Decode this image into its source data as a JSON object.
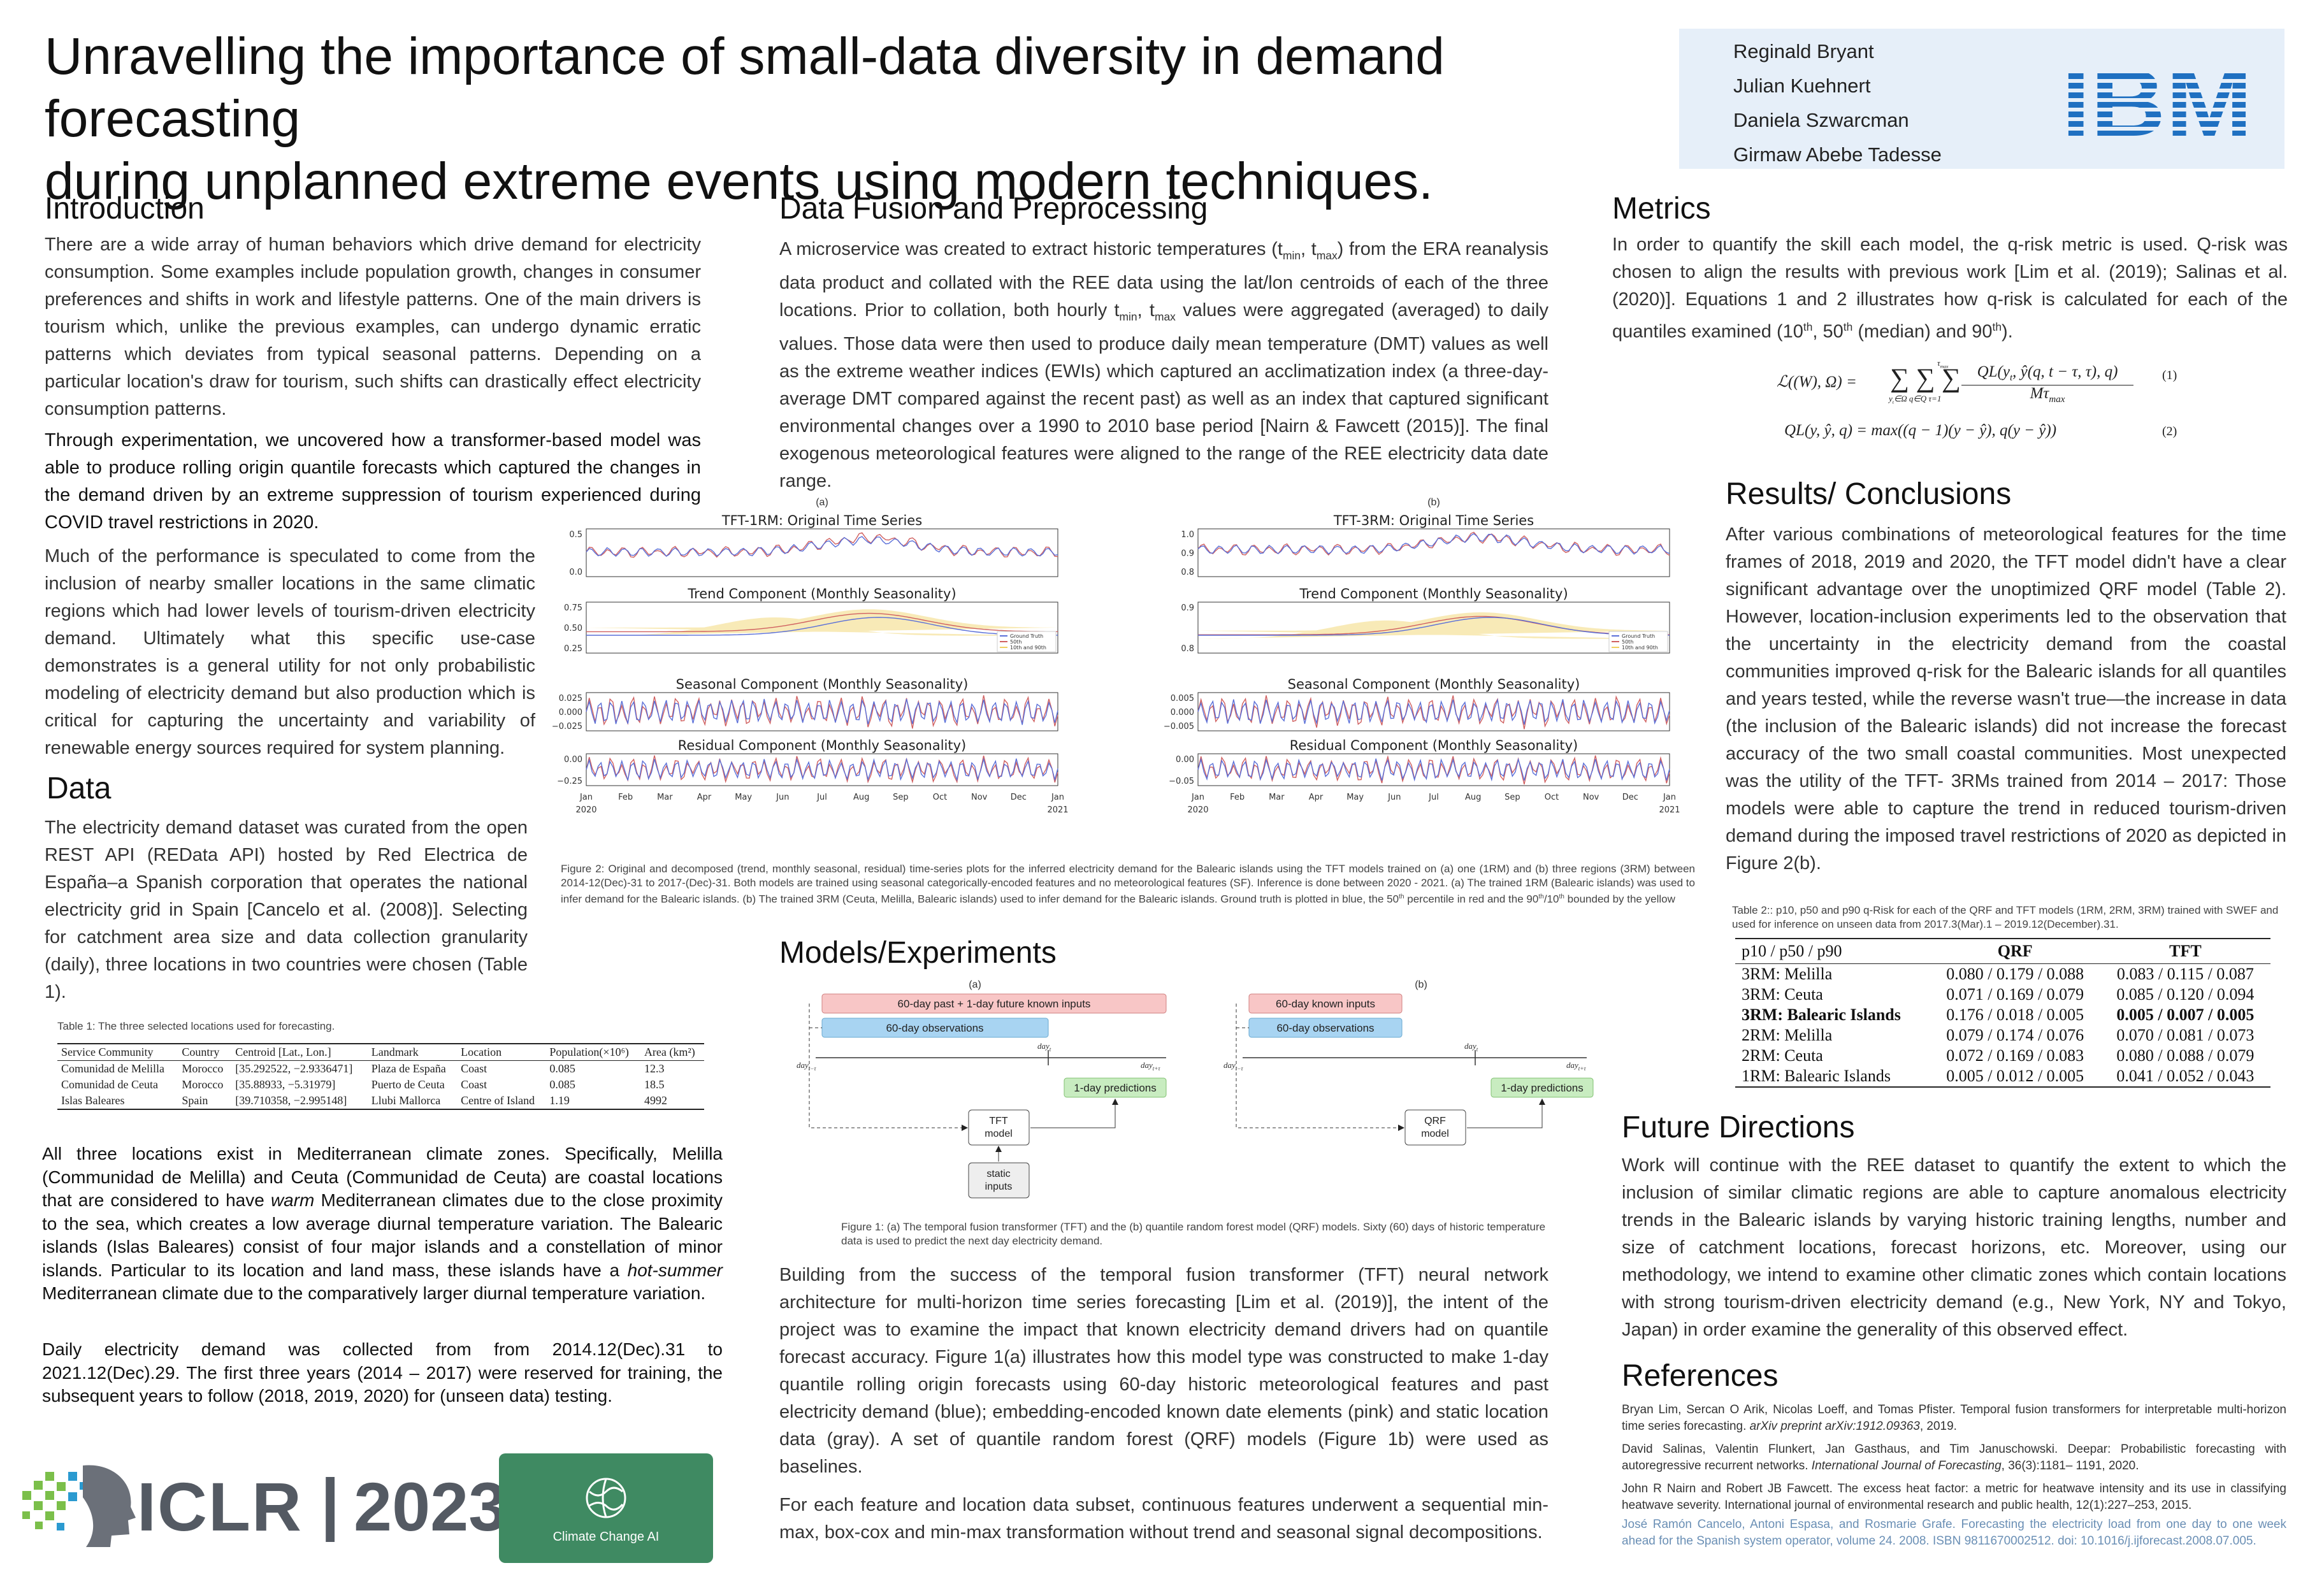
{
  "title": {
    "line1": "Unravelling the importance of small-data diversity in demand forecasting",
    "line2": "during unplanned extreme events using modern techniques."
  },
  "authors": [
    "Reginald Bryant",
    "Julian Kuehnert",
    "Daniela Szwarcman",
    "Girmaw Abebe Tadesse"
  ],
  "logos": {
    "ibm": "IBM",
    "iclr_text": "ICLR",
    "iclr_sep": "|",
    "iclr_year": "2023",
    "cca": "Climate Change AI"
  },
  "colors": {
    "ibm_blue": "#1f70c1",
    "pink": "#f8c6c6",
    "blue_box": "#a8d4f2",
    "green_box": "#c8ecc0",
    "gray_box": "#eeeeee",
    "cca_green": "#3f8a62",
    "series_blue": "#5a6fd8",
    "series_red": "#d06060",
    "series_yellow": "#f0d060"
  },
  "intro": {
    "heading": "Introduction",
    "p1": "There are a wide array of human behaviors which drive demand for electricity consumption. Some examples include population growth, changes in consumer preferences and shifts in work and lifestyle patterns. One of the main drivers is tourism which, unlike the previous examples, can undergo dynamic erratic patterns which deviates from typical seasonal patterns. Depending on a particular location's draw for tourism, such shifts can drastically effect electricity consumption patterns.",
    "p2": "Through experimentation, we uncovered how a transformer-based model was able to produce rolling origin quantile forecasts which captured the changes in the demand driven by an extreme suppression of tourism experienced during COVID travel restrictions in 2020.",
    "p3": "Much of the performance is speculated to come from the inclusion of nearby smaller locations in the same climatic regions which had lower levels of tourism-driven electricity demand. Ultimately what this specific use-case demonstrates is a general utility for not only probabilistic modeling of electricity demand but also production which is critical for capturing the uncertainty and variability of renewable energy sources required for system planning."
  },
  "data_section": {
    "heading": "Data",
    "p1": "The electricity demand  dataset was curated from the open REST API (REData API) hosted by Red Electrica de España–a Spanish corporation that operates the national electricity grid in Spain [Cancelo et al. (2008)]. Selecting for catchment area size and data collection granularity (daily), three locations in two countries were chosen (Table 1).",
    "table_caption": "Table 1: The three selected locations used for forecasting.",
    "table_headers": [
      "Service Community",
      "Country",
      "Centroid [Lat., Lon.]",
      "Landmark",
      "Location",
      "Population(×10⁶)",
      "Area (km²)"
    ],
    "table_rows": [
      [
        "Comunidad de Melilla",
        "Morocco",
        "[35.292522, −2.9336471]",
        "Plaza de España",
        "Coast",
        "0.085",
        "12.3"
      ],
      [
        "Comunidad de Ceuta",
        "Morocco",
        "[35.88933, −5.31979]",
        "Puerto de Ceuta",
        "Coast",
        "0.085",
        "18.5"
      ],
      [
        "Islas Baleares",
        "Spain",
        "[39.710358, −2.995148]",
        "Llubi Mallorca",
        "Centre of Island",
        "1.19",
        "4992"
      ]
    ],
    "p2a": "All three locations exist in Mediterranean climate zones. Specifically, Melilla (Communidad de Melilla) and Ceuta (Communidad de Ceuta) are coastal locations that are considered to have ",
    "p2b": "warm",
    "p2c": " Mediterranean climates due to the close proximity to the sea, which creates a low average diurnal temperature variation. The Balearic islands (Islas Baleares) consist of four major islands and a constellation of minor islands. Particular to its location and land mass, these islands have a ",
    "p2d": "hot-summer",
    "p2e": " Mediterranean climate due to the comparatively larger diurnal temperature variation.",
    "p3": "Daily electricity demand was collected from from 2014.12(Dec).31 to 2021.12(Dec).29. The first three years (2014 – 2017) were reserved for training, the subsequent years to follow (2018, 2019, 2020) for (unseen data) testing."
  },
  "fusion": {
    "heading": "Data Fusion and Preprocessing",
    "p1a": "A microservice was created to extract historic temperatures (t",
    "tmin_sub": "min",
    "p1b": ", t",
    "tmax_sub": "max",
    "p1c": ") from the ERA reanalysis data product and collated with the REE data using the lat/lon centroids of each of the three locations. Prior to collation, both hourly t",
    "p1d": ", t",
    "p1e": " values were aggregated (averaged) to daily values. Those data were then used to produce daily mean temperature (DMT) values as well as the extreme weather indices (EWIs) which captured an acclimatization index (a three-day-average DMT compared against the recent past) as well as an index that captured significant environmental changes over a 1990 to 2010 base period [Nairn & Fawcett (2015)]. The final exogenous meteorological features were aligned to the range of the REE electricity data date range."
  },
  "figure2": {
    "panel_a": "(a)",
    "panel_b": "(b)",
    "a_titles": [
      "TFT-1RM: Original Time Series",
      "Trend Component (Monthly Seasonality)",
      "Seasonal Component (Monthly Seasonality)",
      "Residual Component (Monthly Seasonality)"
    ],
    "b_titles": [
      "TFT-3RM: Original Time Series",
      "Trend Component (Monthly Seasonality)",
      "Seasonal Component (Monthly Seasonality)",
      "Residual Component (Monthly Seasonality)"
    ],
    "a_yticks": [
      [
        "0.5",
        "0.0"
      ],
      [
        "0.75",
        "0.50",
        "0.25"
      ],
      [
        "0.025",
        "0.000",
        "−0.025"
      ],
      [
        "0.00",
        "−0.25"
      ]
    ],
    "b_yticks": [
      [
        "1.0",
        "0.9",
        "0.8"
      ],
      [
        "0.9",
        "0.8"
      ],
      [
        "0.005",
        "0.000",
        "−0.005"
      ],
      [
        "0.00",
        "−0.05"
      ]
    ],
    "months": [
      "Jan",
      "Feb",
      "Mar",
      "Apr",
      "May",
      "Jun",
      "Jul",
      "Aug",
      "Sep",
      "Oct",
      "Nov",
      "Dec",
      "Jan"
    ],
    "year_start": "2020",
    "year_end": "2021",
    "legend": [
      "Ground Truth",
      "50th",
      "10th and 90th"
    ],
    "caption_a": "Figure 2: Original and decomposed (trend, monthly seasonal, residual) time-series plots for the inferred electricity demand for the Balearic islands using the TFT models trained on (a) one (1RM) and (b) three regions (3RM) between 2014-12(Dec)-31 to 2017-(Dec)-31. Both models are trained using seasonal categorically-encoded features and no meteorological features (SF). Inference is done between 2020 - 2021. (a) The trained 1RM (Balearic islands) was used to infer demand for the Balearic islands. (b) The trained 3RM (Ceuta, Melilla, Balearic islands) used to infer demand for the Balearic islands. Ground truth is plotted in blue, the 50",
    "caption_th": "th",
    "caption_b": " percentile in red and the 90",
    "caption_c": "/10",
    "caption_d": " bounded by the yellow"
  },
  "models": {
    "heading": "Models/Experiments",
    "panel_a": "(a)",
    "panel_b": "(b)",
    "a_pink": "60-day past + 1-day future known inputs",
    "a_blue": "60-day observations",
    "b_pink": "60-day known inputs",
    "b_blue": "60-day observations",
    "day_start": "day",
    "day_start_sub": "t−τ",
    "day_mid": "day",
    "day_mid_sub": "t",
    "day_end": "day",
    "day_end_sub": "t+τ",
    "pred": "1-day predictions",
    "tft_model": "TFT\nmodel",
    "qrf_model": "QRF\nmodel",
    "static_inputs": "static\ninputs",
    "caption": "Figure 1: (a) The temporal fusion transformer (TFT) and the (b) quantile random forest model (QRF) models. Sixty (60) days of historic temperature data is used to predict the next day electricity demand.",
    "p1": "Building from the success of the temporal fusion transformer (TFT) neural network architecture for multi-horizon time series forecasting [Lim et al. (2019)], the intent of the project was to examine the impact that known electricity demand drivers had on quantile forecast accuracy. Figure 1(a) illustrates how this model type was constructed to make 1-day quantile rolling origin forecasts using 60-day historic meteorological features and past electricity demand (blue); embedding-encoded known date elements (pink) and static location data (gray). A set of quantile random forest (QRF)  models (Figure 1b) were used as baselines.",
    "p2": "For each feature and location data subset, continuous features underwent a sequential min-max, box-cox and min-max transformation without trend and seasonal signal decompositions."
  },
  "metrics": {
    "heading": "Metrics",
    "p1a": "In order to quantify the skill each model, the q-risk metric is used. Q-risk was chosen to align the results with previous work [Lim et al. (2019); Salinas et al. (2020)]. Equations 1 and 2 illustrates how q-risk is calculated for each of the quantiles examined (10",
    "p1b": ", 50",
    "p1c": " (median) and 90",
    "p1d": ").",
    "th": "th",
    "eq1_lhs": "ℒ((W), Ω) = ",
    "eq1_sum": "∑ ∑ ∑",
    "eq1_sub": "y",
    "eq1_sub2": "t",
    "eq1_sub3": "∈Ω q∈Q τ=1",
    "eq1_top": "τ",
    "eq1_top2": "max",
    "eq1_num": "QL(y",
    "eq1_num2": "t",
    "eq1_num3": ", ŷ(q, t − τ, τ), q)",
    "eq1_den": "Mτ",
    "eq1_den2": "max",
    "eq1_no": "(1)",
    "eq2": "QL(y, ŷ, q) = max((q − 1)(y − ŷ), q(y − ŷ))",
    "eq2_no": "(2)"
  },
  "results": {
    "heading": "Results/ Conclusions",
    "p1": "After various combinations of meteorological features for the time frames of 2018, 2019 and 2020, the TFT model didn't have a clear significant advantage over the unoptimized QRF model (Table 2). However, location-inclusion experiments led to the observation that the uncertainty in the electricity demand from the coastal communities improved q-risk for the Balearic islands for all quantiles and years tested, while the reverse wasn't true—the increase in data (the inclusion of the Balearic islands) did not increase the forecast accuracy of the two small coastal communities. Most unexpected was the utility of the TFT- 3RMs trained from 2014 – 2017: Those models were able to capture the trend in reduced tourism-driven demand during the imposed travel restrictions of 2020 as depicted in Figure 2(b).",
    "table_caption": "Table 2:: p10, p50 and p90 q-Risk for each of the QRF and TFT models (1RM, 2RM, 3RM) trained with SWEF and used for inference on unseen data from 2017.3(Mar).1 – 2019.12(December).31.",
    "table_headers": [
      "p10 / p50 / p90",
      "QRF",
      "TFT"
    ],
    "table_rows": [
      [
        "3RM: Melilla",
        "0.080 / 0.179 / 0.088",
        "0.083 / 0.115 / 0.087"
      ],
      [
        "3RM: Ceuta",
        "0.071 / 0.169 / 0.079",
        "0.085 / 0.120 / 0.094"
      ],
      [
        "3RM: Balearic Islands",
        "0.176 / 0.018 / 0.005",
        "0.005 / 0.007 / 0.005"
      ],
      [
        "2RM: Melilla",
        "0.079 / 0.174 / 0.076",
        "0.070 / 0.081 / 0.073"
      ],
      [
        "2RM: Ceuta",
        "0.072 / 0.169 / 0.083",
        "0.080 / 0.088 / 0.079"
      ],
      [
        "1RM: Balearic Islands",
        "0.005 / 0.012 / 0.005",
        "0.041 / 0.052 / 0.043"
      ]
    ]
  },
  "future": {
    "heading": "Future Directions",
    "p1": "Work will continue with the REE dataset to quantify the extent to which the inclusion of similar climatic regions are able to capture anomalous electricity trends in the Balearic islands by varying historic training lengths, number and size of catchment locations, forecast horizons, etc. Moreover, using our methodology, we intend to examine other climatic zones which contain locations with strong tourism-driven electricity demand (e.g., New York, NY and Tokyo, Japan) in order examine the generality of this observed effect."
  },
  "references": {
    "heading": "References",
    "r1a": "Bryan Lim, Sercan O Arik, Nicolas Loeff, and Tomas Pfister. Temporal fusion transformers for interpretable multi-horizon time series forecasting. ",
    "r1b": "arXiv preprint arXiv:1912.09363",
    "r1c": ", 2019.",
    "r2a": "David Salinas, Valentin Flunkert, Jan Gasthaus, and Tim Januschowski. Deepar: Probabilistic forecasting with autoregressive recurrent networks. ",
    "r2b": "International Journal of Forecasting",
    "r2c": ", 36(3):1181– 1191, 2020.",
    "r3": "John R Nairn and Robert JB Fawcett. The excess heat factor: a metric for heatwave intensity and its use in classifying heatwave severity. International journal of environmental research and public health, 12(1):227–253, 2015.",
    "r4": "José Ramón Cancelo, Antoni Espasa, and Rosmarie Grafe. Forecasting the electricity load from one day to one week ahead for the Spanish system operator, volume 24. 2008. ISBN 9811670002512. doi: 10.1016/j.ijforecast.2008.07.005."
  }
}
